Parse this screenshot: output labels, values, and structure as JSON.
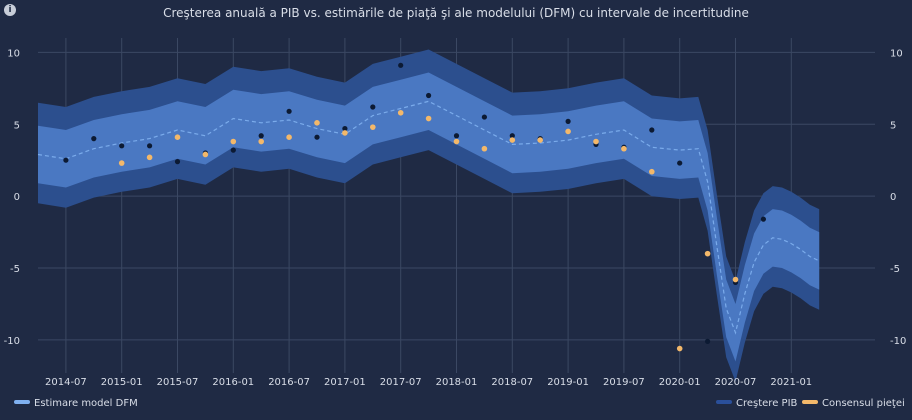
{
  "chart_data": {
    "type": "line",
    "title": "Creşterea anuală a PIB vs. estimările de piaţă şi ale modelului (DFM) cu intervale de incertitudine",
    "info_icon": "i",
    "ylim": [
      -12.3,
      11
    ],
    "yticks": [
      10,
      5,
      0,
      -5,
      -10
    ],
    "xlim": [
      0,
      90
    ],
    "xticks": [
      {
        "label": "2014-07",
        "x": 3
      },
      {
        "label": "2015-01",
        "x": 9
      },
      {
        "label": "2015-07",
        "x": 15
      },
      {
        "label": "2016-01",
        "x": 21
      },
      {
        "label": "2016-07",
        "x": 27
      },
      {
        "label": "2017-01",
        "x": 33
      },
      {
        "label": "2017-07",
        "x": 39
      },
      {
        "label": "2018-01",
        "x": 45
      },
      {
        "label": "2018-07",
        "x": 51
      },
      {
        "label": "2019-01",
        "x": 57
      },
      {
        "label": "2019-07",
        "x": 63
      },
      {
        "label": "2020-01",
        "x": 69
      },
      {
        "label": "2020-07",
        "x": 75
      },
      {
        "label": "2021-01",
        "x": 81
      }
    ],
    "band_x": [
      0,
      3,
      6,
      9,
      12,
      15,
      18,
      21,
      24,
      27,
      30,
      33,
      36,
      39,
      42,
      45,
      48,
      51,
      54,
      57,
      60,
      63,
      66,
      69,
      71,
      72,
      73,
      74,
      75,
      76,
      77,
      78,
      79,
      80,
      81,
      82,
      83,
      84
    ],
    "dfm_x": [
      0,
      3,
      6,
      9,
      12,
      15,
      18,
      21,
      24,
      27,
      30,
      33,
      36,
      39,
      42,
      45,
      48,
      51,
      54,
      57,
      60,
      63,
      66,
      69,
      71,
      72,
      73,
      74,
      75,
      76,
      77,
      78,
      79,
      80,
      81,
      82,
      83,
      84
    ],
    "dfm_estimate": [
      2.9,
      2.6,
      3.3,
      3.7,
      4.0,
      4.6,
      4.2,
      5.4,
      5.1,
      5.3,
      4.7,
      4.3,
      5.6,
      6.1,
      6.6,
      5.6,
      4.6,
      3.6,
      3.7,
      3.9,
      4.3,
      4.6,
      3.4,
      3.2,
      3.3,
      1.0,
      -3.5,
      -7.8,
      -9.5,
      -6.8,
      -4.6,
      -3.4,
      -2.9,
      -3.0,
      -3.3,
      -3.7,
      -4.2,
      -4.5
    ],
    "inner_band": {
      "lower_offset": -2.0,
      "upper_offset": 2.0
    },
    "outer_band": {
      "lower_offset": -3.4,
      "upper_offset": 3.6
    },
    "series": [
      {
        "name": "Estimare model DFM",
        "color": "#7fb0f0",
        "style": "dashed-line"
      },
      {
        "name": "Creştere PIB",
        "color": "#0c1a33",
        "style": "markers",
        "x": [
          3,
          6,
          9,
          12,
          15,
          18,
          21,
          24,
          27,
          30,
          33,
          36,
          39,
          42,
          45,
          48,
          51,
          54,
          57,
          60,
          63,
          66,
          69,
          72,
          75,
          78
        ],
        "values": [
          2.5,
          4.0,
          3.5,
          3.5,
          2.4,
          3.0,
          3.2,
          4.2,
          5.9,
          4.1,
          4.7,
          6.2,
          9.1,
          7.0,
          4.2,
          5.5,
          4.2,
          4.0,
          5.2,
          3.6,
          3.4,
          4.6,
          2.3,
          -10.1,
          -6.0,
          -1.6
        ]
      },
      {
        "name": "Consensul pieţei",
        "color": "#f3b86a",
        "style": "markers",
        "x": [
          9,
          12,
          15,
          18,
          21,
          24,
          27,
          30,
          33,
          36,
          39,
          42,
          45,
          48,
          51,
          54,
          57,
          60,
          63,
          66,
          69,
          72,
          75
        ],
        "values": [
          2.3,
          2.7,
          4.1,
          2.9,
          3.8,
          3.8,
          4.1,
          5.1,
          4.4,
          4.8,
          5.8,
          5.4,
          3.8,
          3.3,
          3.9,
          3.9,
          4.5,
          3.8,
          3.3,
          1.7,
          -10.6,
          -4.0,
          -5.8
        ]
      }
    ],
    "legend": {
      "left": [
        "Estimare model DFM"
      ],
      "right": [
        "Creştere PIB",
        "Consensul pieţei"
      ]
    },
    "colors": {
      "background": "#1f2a44",
      "outer_band": "#2c4f8e",
      "inner_band": "#4a78c2",
      "grid": "#3b4863",
      "text": "#d9dee8"
    }
  }
}
